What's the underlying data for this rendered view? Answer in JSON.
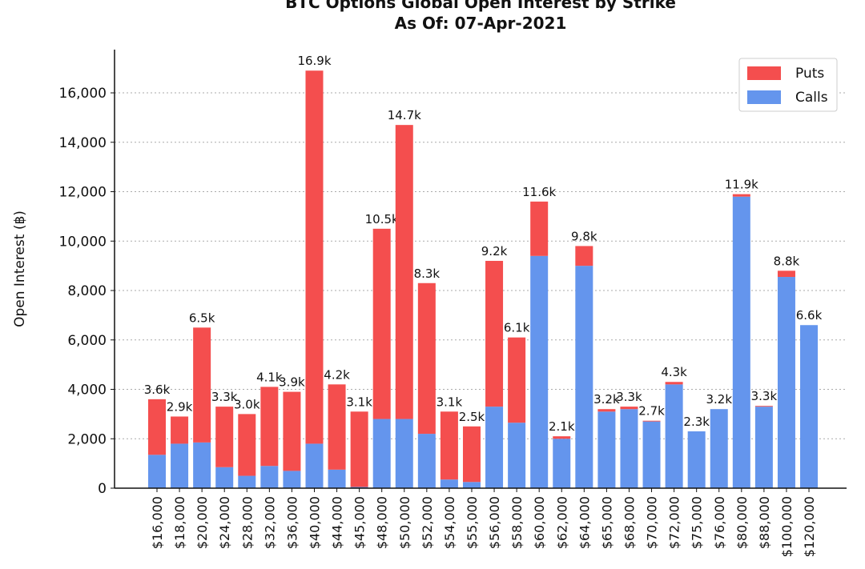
{
  "chart_data": {
    "type": "stacked-bar",
    "title": "BTC Options Global Open Interest by Strike",
    "subtitle": "As Of: 07-Apr-2021",
    "y_label": "Open Interest (฿)",
    "categories": [
      "$16,000",
      "$18,000",
      "$20,000",
      "$24,000",
      "$28,000",
      "$32,000",
      "$36,000",
      "$40,000",
      "$44,000",
      "$45,000",
      "$48,000",
      "$50,000",
      "$52,000",
      "$54,000",
      "$55,000",
      "$56,000",
      "$58,000",
      "$60,000",
      "$62,000",
      "$64,000",
      "$65,000",
      "$68,000",
      "$70,000",
      "$72,000",
      "$75,000",
      "$76,000",
      "$80,000",
      "$88,000",
      "$100,000",
      "$120,000"
    ],
    "series": [
      {
        "name": "Calls",
        "color": "#6495ed",
        "values": [
          1350,
          1800,
          1850,
          850,
          500,
          900,
          700,
          1800,
          750,
          50,
          2800,
          2800,
          2200,
          350,
          250,
          3300,
          2650,
          9400,
          2000,
          9000,
          3100,
          3200,
          2700,
          4200,
          2300,
          3200,
          11800,
          3300,
          8550,
          6600
        ]
      },
      {
        "name": "Puts",
        "color": "#f44e4e",
        "values": [
          2250,
          1100,
          4650,
          2450,
          2500,
          3200,
          3200,
          15100,
          3450,
          3050,
          7700,
          11900,
          6100,
          2750,
          2250,
          5900,
          3450,
          2200,
          100,
          800,
          100,
          100,
          30,
          100,
          0,
          0,
          100,
          30,
          250,
          0
        ]
      }
    ],
    "totals": [
      3600,
      2900,
      6500,
      3300,
      3000,
      4100,
      3900,
      16900,
      4200,
      3100,
      10500,
      14700,
      8300,
      3100,
      2500,
      9200,
      6100,
      11600,
      2100,
      9800,
      3200,
      3300,
      2730,
      4300,
      2300,
      3200,
      11900,
      3330,
      8800,
      6600
    ],
    "total_labels": [
      "3.6k",
      "2.9k",
      "6.5k",
      "3.3k",
      "3.0k",
      "4.1k",
      "3.9k",
      "16.9k",
      "4.2k",
      "3.1k",
      "10.5k",
      "14.7k",
      "8.3k",
      "3.1k",
      "2.5k",
      "9.2k",
      "6.1k",
      "11.6k",
      "2.1k",
      "9.8k",
      "3.2k",
      "3.3k",
      "2.7k",
      "4.3k",
      "2.3k",
      "3.2k",
      "11.9k",
      "3.3k",
      "8.8k",
      "6.6k"
    ],
    "ylim": [
      0,
      17750
    ],
    "yticks": [
      0,
      {
        "value": 2000,
        "label": "2,000"
      },
      {
        "value": 4000,
        "label": "4,000"
      },
      {
        "value": 6000,
        "label": "6,000"
      },
      {
        "value": 8000,
        "label": "8,000"
      },
      {
        "value": 10000,
        "label": "10,000"
      },
      {
        "value": 12000,
        "label": "12,000"
      },
      {
        "value": 14000,
        "label": "14,000"
      },
      {
        "value": 16000,
        "label": "16,000"
      }
    ],
    "grid": true,
    "legend": "upper right"
  }
}
